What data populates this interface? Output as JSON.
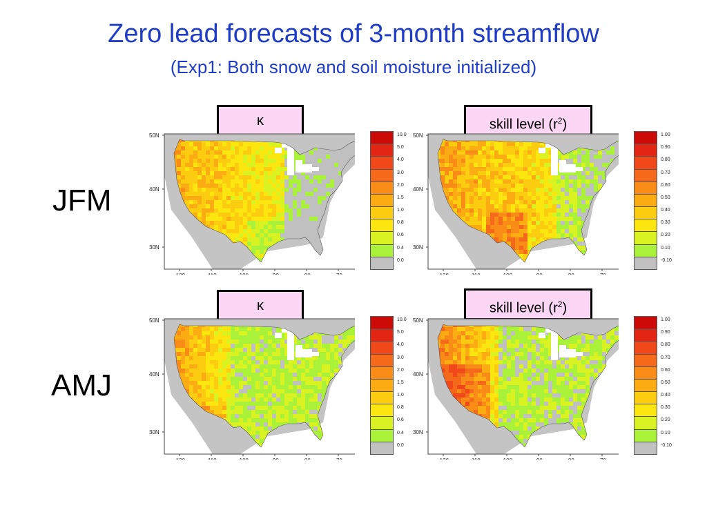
{
  "title": "Zero lead forecasts of 3-month streamflow",
  "subtitle": "(Exp1: Both snow and soil moisture initialized)",
  "rows": [
    {
      "label": "JFM",
      "panels": [
        {
          "label": "κ",
          "sup": ""
        },
        {
          "label": "skill level (r",
          "sup": "2",
          "close": ")"
        }
      ]
    },
    {
      "label": "AMJ",
      "panels": [
        {
          "label": "κ",
          "sup": ""
        },
        {
          "label": "skill level (r",
          "sup": "2",
          "close": ")"
        }
      ]
    }
  ],
  "map_axes": {
    "lat_labels": [
      "50N",
      "40N",
      "30N"
    ],
    "lon_labels": [
      "-120",
      "-110",
      "-100",
      "-90",
      "-80",
      "-70"
    ]
  },
  "legends": {
    "kappa": {
      "ticks": [
        "10.0",
        "5.0",
        "4.0",
        "3.0",
        "2.0",
        "1.5",
        "1.0",
        "0.8",
        "0.6",
        "0.4",
        "0.0"
      ],
      "colors": [
        "#cc0a08",
        "#e32514",
        "#f04818",
        "#f46a1a",
        "#f88c16",
        "#fbac12",
        "#fccc10",
        "#fbe60f",
        "#d8f222",
        "#aaf23a",
        "#c0c0c0"
      ]
    },
    "skill": {
      "ticks": [
        "1.00",
        "0.90",
        "0.80",
        "0.70",
        "0.60",
        "0.50",
        "0.40",
        "0.30",
        "0.20",
        "0.10",
        "-0.10"
      ],
      "colors": [
        "#cc0a08",
        "#e32514",
        "#f04818",
        "#f46a1a",
        "#f88c16",
        "#fbac12",
        "#fccc10",
        "#fbe60f",
        "#d8f222",
        "#aaf23a",
        "#c0c0c0"
      ]
    }
  }
}
